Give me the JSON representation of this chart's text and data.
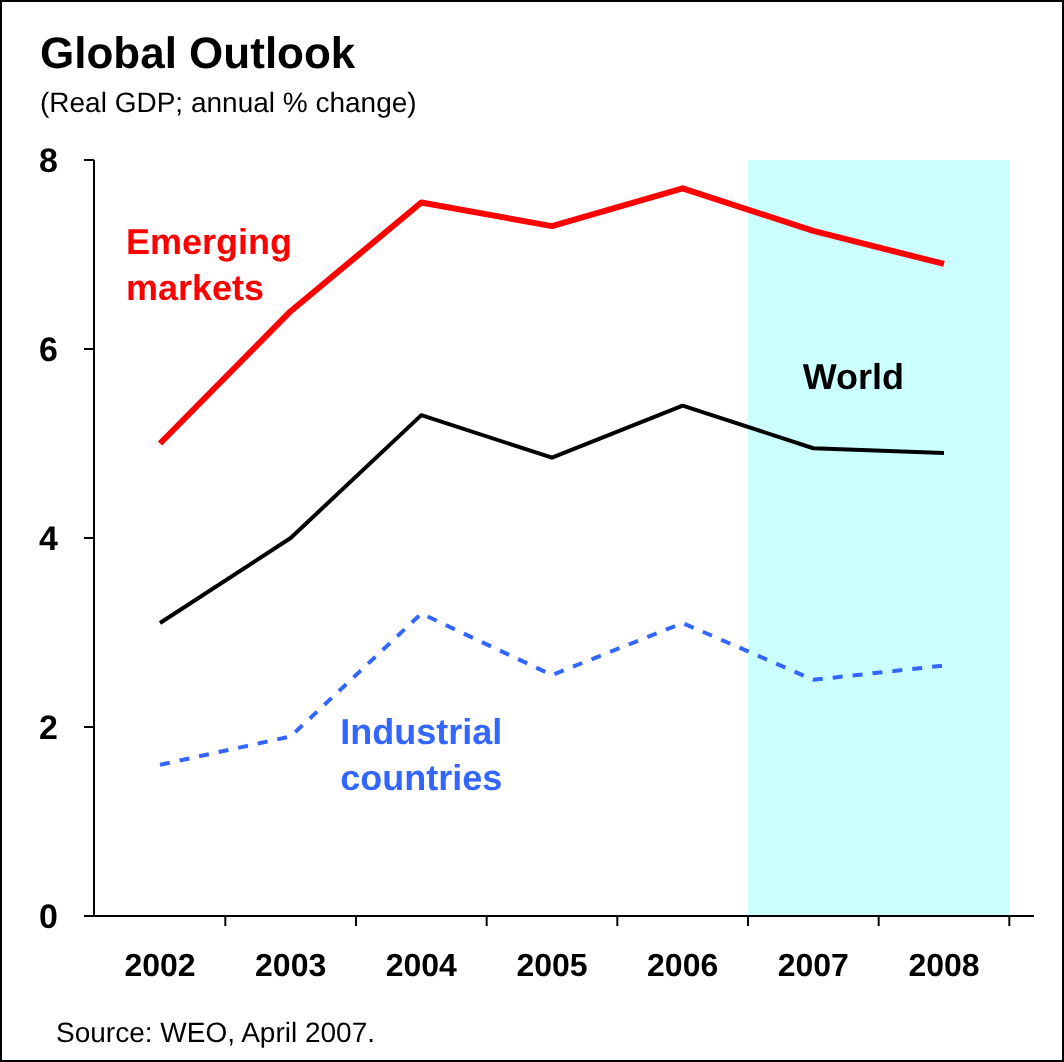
{
  "chart_data": {
    "type": "line",
    "title": "Global Outlook",
    "subtitle": "(Real GDP; annual % change)",
    "categories": [
      "2002",
      "2003",
      "2004",
      "2005",
      "2006",
      "2007",
      "2008"
    ],
    "series": [
      {
        "name": "Emerging markets",
        "color": "#ff0000",
        "values": [
          5.0,
          6.4,
          7.55,
          7.3,
          7.7,
          7.25,
          6.9
        ]
      },
      {
        "name": "World",
        "color": "#000000",
        "values": [
          3.1,
          4.0,
          5.3,
          4.85,
          5.4,
          4.95,
          4.9
        ]
      },
      {
        "name": "Industrial countries",
        "color": "#3366ff",
        "values": [
          1.6,
          1.9,
          3.2,
          2.55,
          3.1,
          2.5,
          2.65
        ],
        "line_style": "dashed"
      }
    ],
    "ylim": [
      0,
      8
    ],
    "yticks": [
      0,
      2,
      4,
      6,
      8
    ],
    "grid": false,
    "legend": false,
    "bands": [
      {
        "axis": "x",
        "from": "2007",
        "to": "2008",
        "color": "#ccffff"
      }
    ],
    "annotations": [
      "Source: WEO, April 2007."
    ]
  }
}
